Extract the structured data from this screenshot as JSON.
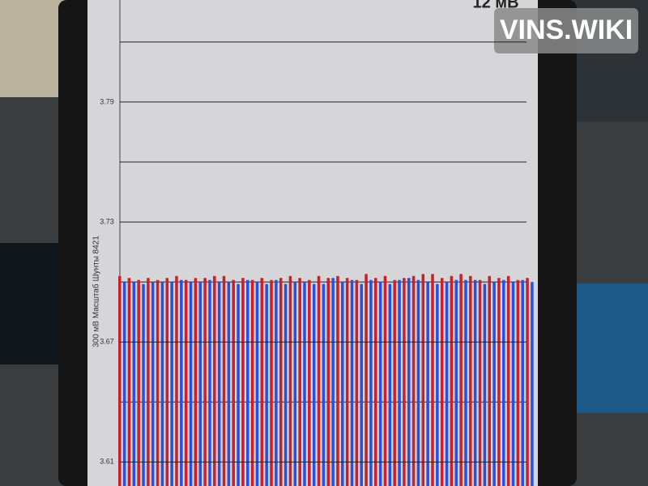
{
  "chart_data": {
    "type": "bar",
    "header_value": "12 мВ",
    "watermark": "VINS.WIKI",
    "axis_note": "300 мВ Масштаб   Шунты 8421",
    "ylim": [
      3.598,
      3.841
    ],
    "yticks": [
      3.61,
      3.67,
      3.73,
      3.79
    ],
    "minor_yticks": [
      3.64,
      3.7,
      3.76,
      3.82
    ],
    "grid": true,
    "series": [
      {
        "color": "#c8202c",
        "values": [
          3.703,
          3.702,
          3.701,
          3.702,
          3.701,
          3.702,
          3.703,
          3.701,
          3.702,
          3.702,
          3.703,
          3.703,
          3.701,
          3.702,
          3.701,
          3.702,
          3.701,
          3.702,
          3.703,
          3.702,
          3.701,
          3.703,
          3.702,
          3.703,
          3.702,
          3.701,
          3.704,
          3.702,
          3.703,
          3.701,
          3.702,
          3.703,
          3.704,
          3.704,
          3.702,
          3.703,
          3.704,
          3.703,
          3.701,
          3.703,
          3.702,
          3.703,
          3.701,
          3.702
        ]
      },
      {
        "color": "#2a4fe0",
        "values": [
          3.7,
          3.7,
          3.699,
          3.7,
          3.7,
          3.7,
          3.701,
          3.7,
          3.7,
          3.701,
          3.7,
          3.7,
          3.699,
          3.701,
          3.7,
          3.699,
          3.701,
          3.699,
          3.7,
          3.7,
          3.699,
          3.699,
          3.702,
          3.7,
          3.701,
          3.699,
          3.701,
          3.7,
          3.699,
          3.701,
          3.702,
          3.701,
          3.7,
          3.699,
          3.7,
          3.701,
          3.701,
          3.701,
          3.699,
          3.7,
          3.701,
          3.7,
          3.701,
          3.7
        ]
      }
    ]
  }
}
